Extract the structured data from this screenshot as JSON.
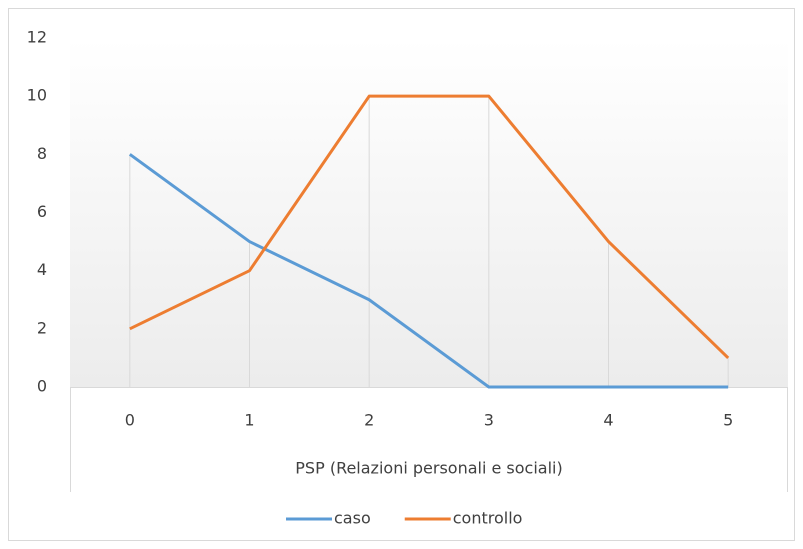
{
  "chart_data": {
    "type": "line",
    "x_label": "PSP (Relazioni personali e sociali)",
    "categories": [
      0,
      1,
      2,
      3,
      4,
      5
    ],
    "series": [
      {
        "name": "caso",
        "color": "#5b9bd5",
        "values": [
          8,
          5,
          3,
          0,
          0,
          0
        ]
      },
      {
        "name": "controllo",
        "color": "#ed7d31",
        "values": [
          2,
          4,
          10,
          10,
          5,
          1
        ]
      }
    ],
    "ylim": [
      0,
      12
    ],
    "yticks": [
      0,
      2,
      4,
      6,
      8,
      10,
      12
    ],
    "drop_lines": true,
    "legend": "bottom"
  }
}
